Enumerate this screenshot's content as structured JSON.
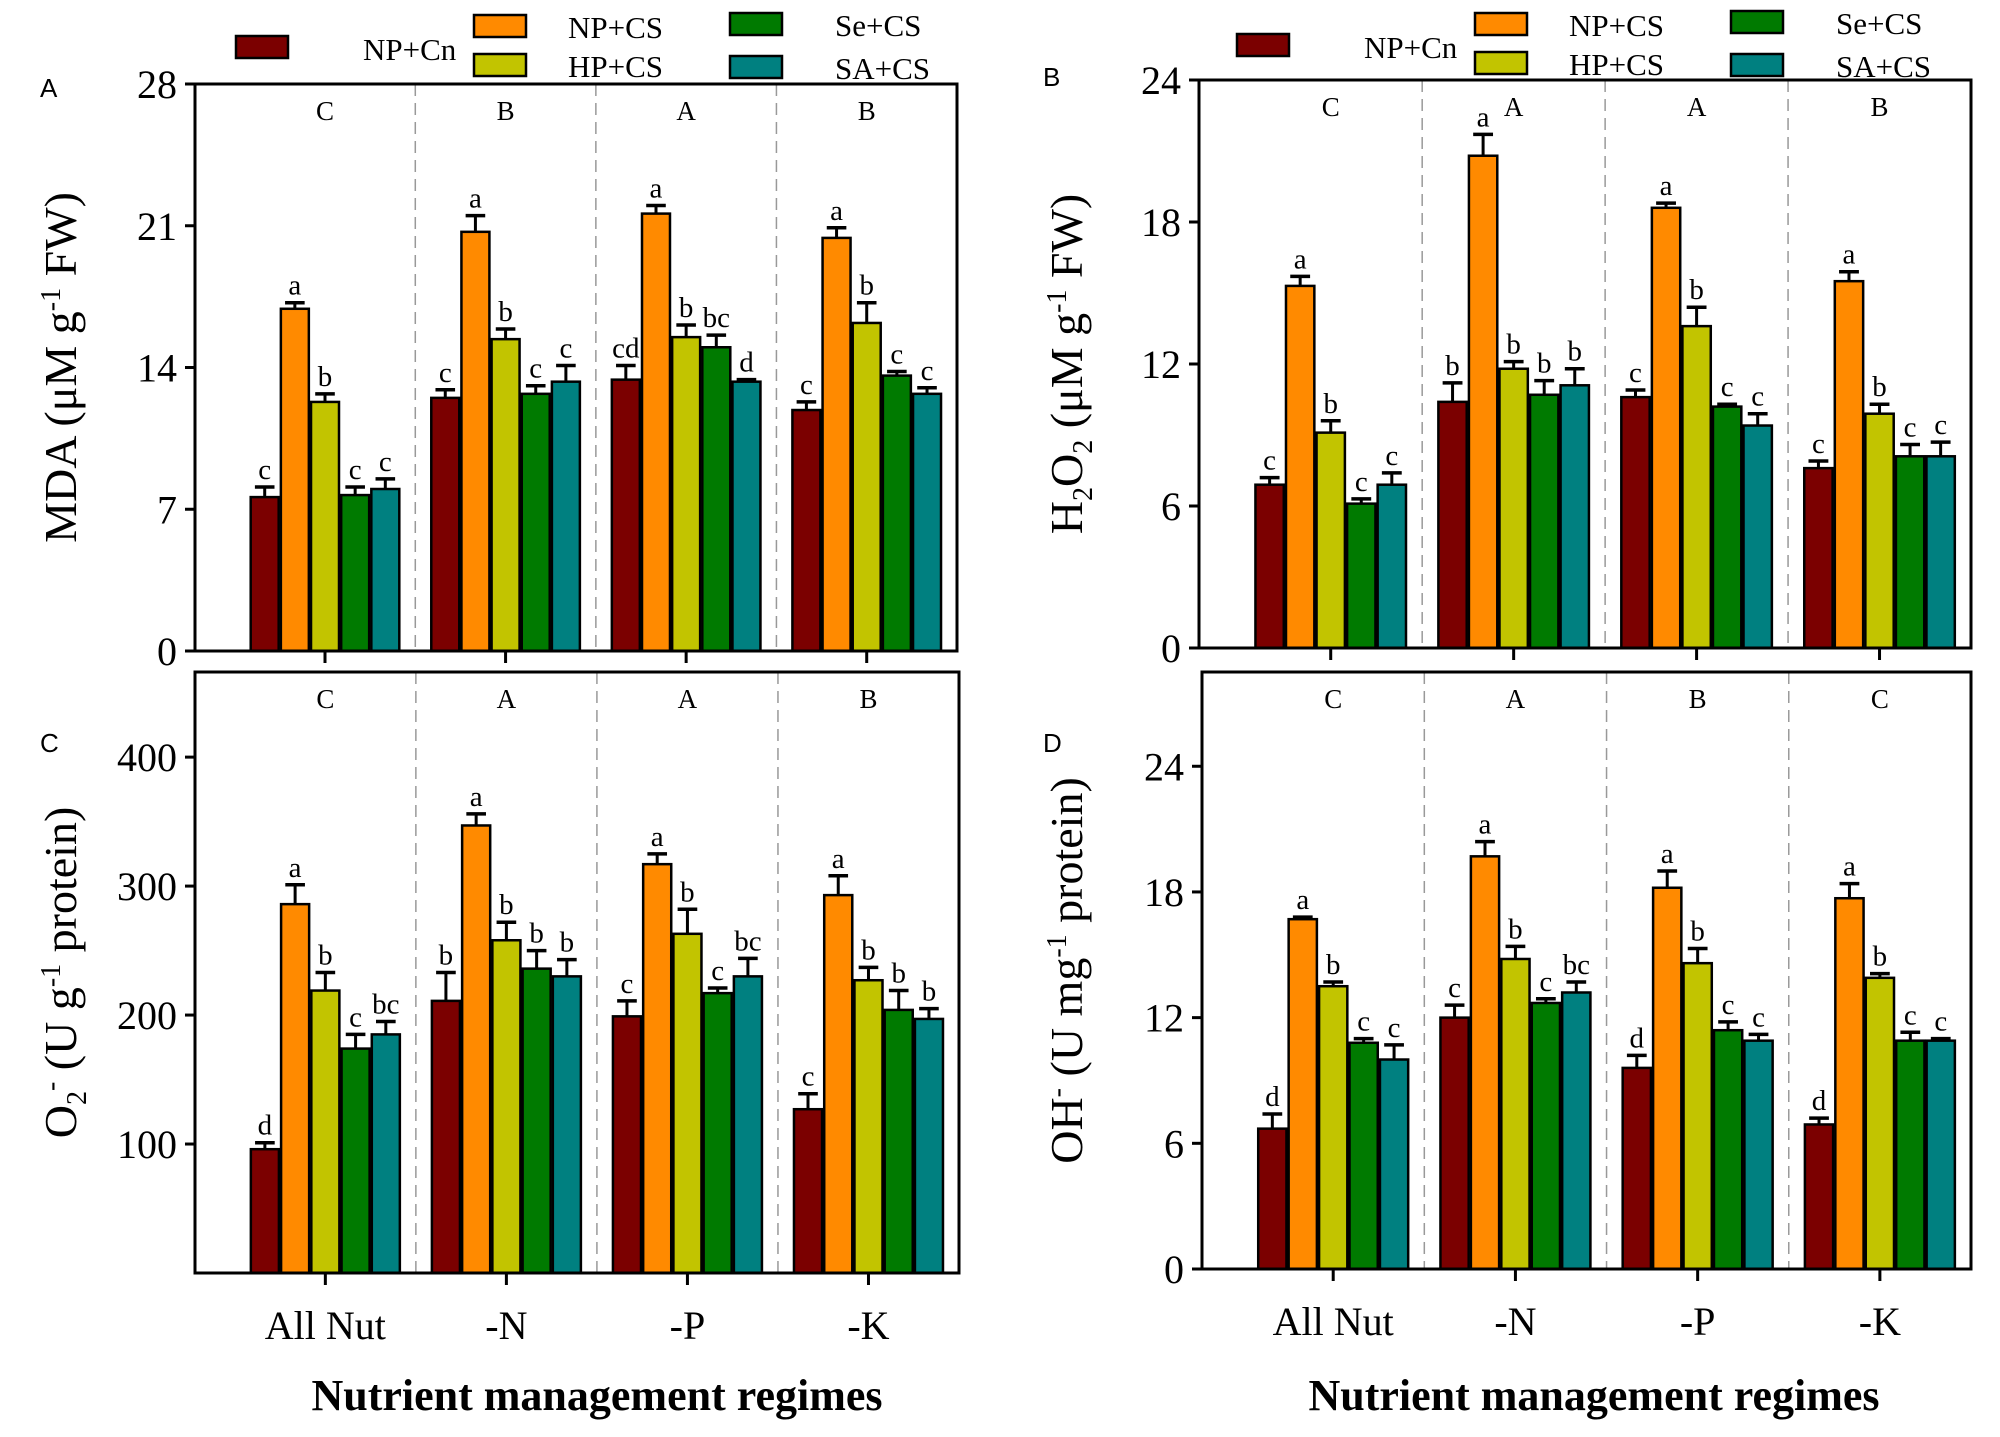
{
  "chart_data": [
    {
      "type": "bar",
      "panel": "A",
      "ylabel_parts": [
        {
          "t": "MDA (μM g",
          "s": ""
        },
        {
          "t": "-1",
          "s": "sup"
        },
        {
          "t": " FW)",
          "s": ""
        }
      ],
      "xlabel": "",
      "ylim": [
        0,
        28
      ],
      "yticks": [
        "0",
        "7",
        "14",
        "21",
        "28"
      ],
      "ytick_values": [
        0,
        7,
        14,
        21,
        28
      ],
      "categories": [
        "All Nut",
        "-N",
        "-P",
        "-K"
      ],
      "show_xtick_labels": false,
      "group_letters": [
        "C",
        "B",
        "A",
        "B"
      ],
      "series": [
        {
          "name": "NP+Cn",
          "color": "#7B0000",
          "values": [
            7.6,
            12.5,
            13.4,
            11.9
          ],
          "errors": [
            0.5,
            0.4,
            0.7,
            0.4
          ],
          "letters": [
            "c",
            "c",
            "cd",
            "c"
          ]
        },
        {
          "name": "NP+CS",
          "color": "#FF8A00",
          "values": [
            16.9,
            20.7,
            21.6,
            20.4
          ],
          "errors": [
            0.3,
            0.8,
            0.4,
            0.5
          ],
          "letters": [
            "a",
            "a",
            "a",
            "a"
          ]
        },
        {
          "name": "HP+CS",
          "color": "#C2C400",
          "values": [
            12.3,
            15.4,
            15.5,
            16.2
          ],
          "errors": [
            0.4,
            0.5,
            0.6,
            1.0
          ],
          "letters": [
            "b",
            "b",
            "b",
            "b"
          ]
        },
        {
          "name": "Se+CS",
          "color": "#007A00",
          "values": [
            7.7,
            12.7,
            15.0,
            13.6
          ],
          "errors": [
            0.4,
            0.4,
            0.6,
            0.2
          ],
          "letters": [
            "c",
            "c",
            "bc",
            "c"
          ]
        },
        {
          "name": "SA+CS",
          "color": "#008080",
          "values": [
            8.0,
            13.3,
            13.3,
            12.7
          ],
          "errors": [
            0.5,
            0.8,
            0.1,
            0.3
          ],
          "letters": [
            "c",
            "c",
            "d",
            "c"
          ]
        }
      ],
      "legend": "top"
    },
    {
      "type": "bar",
      "panel": "B",
      "ylabel_parts": [
        {
          "t": "H",
          "s": ""
        },
        {
          "t": "2",
          "s": "sub"
        },
        {
          "t": "O",
          "s": ""
        },
        {
          "t": "2",
          "s": "sub"
        },
        {
          "t": " (μM g",
          "s": ""
        },
        {
          "t": "-1",
          "s": "sup"
        },
        {
          "t": " FW)",
          "s": ""
        }
      ],
      "xlabel": "",
      "ylim": [
        0,
        24
      ],
      "yticks": [
        "0",
        "6",
        "12",
        "18",
        "24"
      ],
      "ytick_values": [
        0,
        6,
        12,
        18,
        24
      ],
      "categories": [
        "All Nut",
        "-N",
        "-P",
        "-K"
      ],
      "show_xtick_labels": false,
      "group_letters": [
        "C",
        "A",
        "A",
        "B"
      ],
      "series": [
        {
          "name": "NP+Cn",
          "color": "#7B0000",
          "values": [
            6.9,
            10.4,
            10.6,
            7.6
          ],
          "errors": [
            0.3,
            0.8,
            0.3,
            0.3
          ],
          "letters": [
            "c",
            "b",
            "c",
            "c"
          ]
        },
        {
          "name": "NP+CS",
          "color": "#FF8A00",
          "values": [
            15.3,
            20.8,
            18.6,
            15.5
          ],
          "errors": [
            0.4,
            0.9,
            0.2,
            0.4
          ],
          "letters": [
            "a",
            "a",
            "a",
            "a"
          ]
        },
        {
          "name": "HP+CS",
          "color": "#C2C400",
          "values": [
            9.1,
            11.8,
            13.6,
            9.9
          ],
          "errors": [
            0.5,
            0.3,
            0.8,
            0.4
          ],
          "letters": [
            "b",
            "b",
            "b",
            "b"
          ]
        },
        {
          "name": "Se+CS",
          "color": "#007A00",
          "values": [
            6.1,
            10.7,
            10.2,
            8.1
          ],
          "errors": [
            0.2,
            0.6,
            0.1,
            0.5
          ],
          "letters": [
            "c",
            "b",
            "c",
            "c"
          ]
        },
        {
          "name": "SA+CS",
          "color": "#008080",
          "values": [
            6.9,
            11.1,
            9.4,
            8.1
          ],
          "errors": [
            0.5,
            0.7,
            0.5,
            0.6
          ],
          "letters": [
            "c",
            "b",
            "c",
            "c"
          ]
        }
      ],
      "legend": "top"
    },
    {
      "type": "bar",
      "panel": "C",
      "ylabel_parts": [
        {
          "t": "O",
          "s": ""
        },
        {
          "t": "2",
          "s": "sub"
        },
        {
          "t": "-",
          "s": "sup"
        },
        {
          "t": " (U g",
          "s": ""
        },
        {
          "t": "-1",
          "s": "sup"
        },
        {
          "t": " protein)",
          "s": ""
        }
      ],
      "xlabel": "Nutrient management regimes",
      "ylim": [
        0,
        466
      ],
      "yticks": [
        "100",
        "200",
        "300",
        "400"
      ],
      "ytick_values": [
        100,
        200,
        300,
        400
      ],
      "categories": [
        "All Nut",
        "-N",
        "-P",
        "-K"
      ],
      "show_xtick_labels": true,
      "group_letters": [
        "C",
        "A",
        "A",
        "B"
      ],
      "series": [
        {
          "name": "NP+Cn",
          "color": "#7B0000",
          "values": [
            96,
            211,
            199,
            127
          ],
          "errors": [
            5,
            22,
            12,
            12
          ],
          "letters": [
            "d",
            "b",
            "c",
            "c"
          ]
        },
        {
          "name": "NP+CS",
          "color": "#FF8A00",
          "values": [
            286,
            347,
            317,
            293
          ],
          "errors": [
            15,
            9,
            8,
            15
          ],
          "letters": [
            "a",
            "a",
            "a",
            "a"
          ]
        },
        {
          "name": "HP+CS",
          "color": "#C2C400",
          "values": [
            219,
            258,
            263,
            227
          ],
          "errors": [
            14,
            14,
            19,
            10
          ],
          "letters": [
            "b",
            "b",
            "b",
            "b"
          ]
        },
        {
          "name": "Se+CS",
          "color": "#007A00",
          "values": [
            174,
            236,
            217,
            204
          ],
          "errors": [
            11,
            14,
            4,
            15
          ],
          "letters": [
            "c",
            "b",
            "c",
            "b"
          ]
        },
        {
          "name": "SA+CS",
          "color": "#008080",
          "values": [
            185,
            230,
            230,
            197
          ],
          "errors": [
            10,
            13,
            14,
            8
          ],
          "letters": [
            "bc",
            "b",
            "bc",
            "b"
          ]
        }
      ]
    },
    {
      "type": "bar",
      "panel": "D",
      "ylabel_parts": [
        {
          "t": "OH",
          "s": ""
        },
        {
          "t": "-",
          "s": "sup"
        },
        {
          "t": " (U mg",
          "s": ""
        },
        {
          "t": "-1",
          "s": "sup"
        },
        {
          "t": " protein)",
          "s": ""
        }
      ],
      "xlabel": "Nutrient management regimes",
      "ylim": [
        0,
        28.5
      ],
      "yticks": [
        "0",
        "6",
        "12",
        "18",
        "24"
      ],
      "ytick_values": [
        0,
        6,
        12,
        18,
        24
      ],
      "categories": [
        "All Nut",
        "-N",
        "-P",
        "-K"
      ],
      "show_xtick_labels": true,
      "group_letters": [
        "C",
        "A",
        "B",
        "C"
      ],
      "series": [
        {
          "name": "NP+Cn",
          "color": "#7B0000",
          "values": [
            6.7,
            12.0,
            9.6,
            6.9
          ],
          "errors": [
            0.7,
            0.6,
            0.6,
            0.3
          ],
          "letters": [
            "d",
            "c",
            "d",
            "d"
          ]
        },
        {
          "name": "NP+CS",
          "color": "#FF8A00",
          "values": [
            16.7,
            19.7,
            18.2,
            17.7
          ],
          "errors": [
            0.1,
            0.7,
            0.8,
            0.7
          ],
          "letters": [
            "a",
            "a",
            "a",
            "a"
          ]
        },
        {
          "name": "HP+CS",
          "color": "#C2C400",
          "values": [
            13.5,
            14.8,
            14.6,
            13.9
          ],
          "errors": [
            0.2,
            0.6,
            0.7,
            0.2
          ],
          "letters": [
            "b",
            "b",
            "b",
            "b"
          ]
        },
        {
          "name": "Se+CS",
          "color": "#007A00",
          "values": [
            10.8,
            12.7,
            11.4,
            10.9
          ],
          "errors": [
            0.2,
            0.2,
            0.4,
            0.4
          ],
          "letters": [
            "c",
            "c",
            "c",
            "c"
          ]
        },
        {
          "name": "SA+CS",
          "color": "#008080",
          "values": [
            10.0,
            13.2,
            10.9,
            10.9
          ],
          "errors": [
            0.7,
            0.5,
            0.3,
            0.1
          ],
          "letters": [
            "c",
            "bc",
            "c",
            "c"
          ]
        }
      ]
    }
  ]
}
